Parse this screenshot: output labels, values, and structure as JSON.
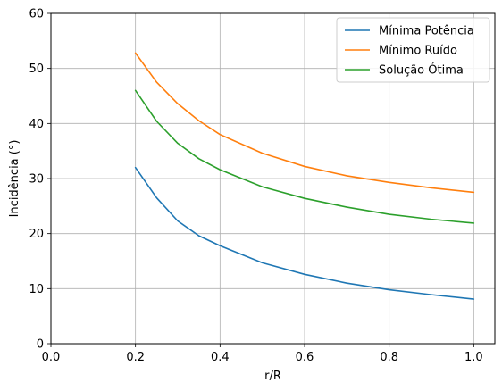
{
  "chart_data": {
    "type": "line",
    "xlabel": "r/R",
    "ylabel": "Incidência (°)",
    "xlim": [
      0.0,
      1.05
    ],
    "ylim": [
      0,
      60
    ],
    "xticks": [
      0.0,
      0.2,
      0.4,
      0.6,
      0.8,
      1.0
    ],
    "xtick_labels": [
      "0.0",
      "0.2",
      "0.4",
      "0.6",
      "0.8",
      "1.0"
    ],
    "yticks": [
      0,
      10,
      20,
      30,
      40,
      50,
      60
    ],
    "ytick_labels": [
      "0",
      "10",
      "20",
      "30",
      "40",
      "50",
      "60"
    ],
    "grid": true,
    "legend_position": "top-right",
    "x": [
      0.2,
      0.25,
      0.3,
      0.35,
      0.4,
      0.5,
      0.6,
      0.7,
      0.8,
      0.9,
      1.0
    ],
    "series": [
      {
        "name": "Mínima Potência",
        "color": "#1f77b4",
        "values": [
          32.0,
          26.5,
          22.3,
          19.6,
          17.8,
          14.7,
          12.6,
          11.0,
          9.8,
          8.9,
          8.1
        ]
      },
      {
        "name": "Mínimo Ruído",
        "color": "#ff7f0e",
        "values": [
          52.8,
          47.5,
          43.6,
          40.5,
          38.0,
          34.6,
          32.2,
          30.5,
          29.3,
          28.3,
          27.5
        ]
      },
      {
        "name": "Solução Ótima",
        "color": "#2ca02c",
        "values": [
          46.0,
          40.4,
          36.4,
          33.6,
          31.6,
          28.5,
          26.4,
          24.8,
          23.5,
          22.6,
          21.9
        ]
      }
    ]
  }
}
